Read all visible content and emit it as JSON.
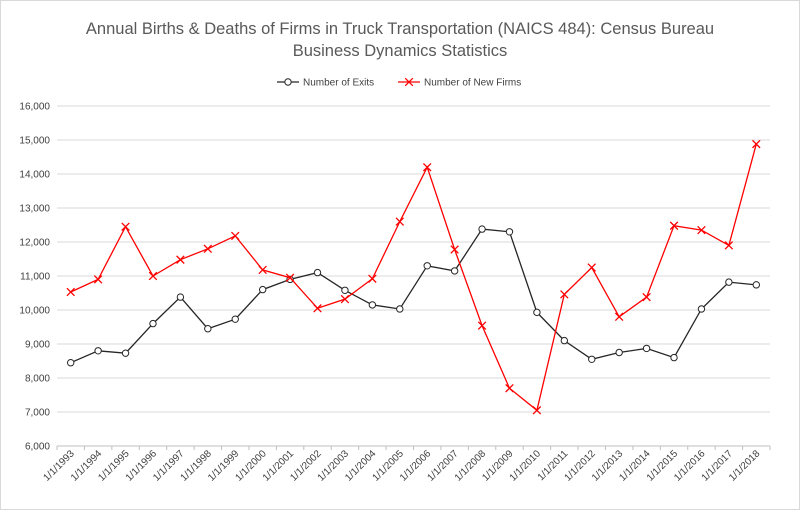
{
  "chart_data": {
    "type": "line",
    "title": "Annual Births & Deaths of Firms in Truck Transportation (NAICS 484): Census Bureau",
    "subtitle": "Business Dynamics Statistics",
    "xlabel": "",
    "ylabel": "",
    "ylim": [
      6000,
      16000
    ],
    "ytick_labels": [
      "6,000",
      "7,000",
      "8,000",
      "9,000",
      "10,000",
      "11,000",
      "12,000",
      "13,000",
      "14,000",
      "15,000",
      "16,000"
    ],
    "ytick_values": [
      6000,
      7000,
      8000,
      9000,
      10000,
      11000,
      12000,
      13000,
      14000,
      15000,
      16000
    ],
    "grid": "horizontal",
    "legend": "top-center",
    "categories": [
      "1/1/1993",
      "1/1/1994",
      "1/1/1995",
      "1/1/1996",
      "1/1/1997",
      "1/1/1998",
      "1/1/1999",
      "1/1/2000",
      "1/1/2001",
      "1/1/2002",
      "1/1/2003",
      "1/1/2004",
      "1/1/2005",
      "1/1/2006",
      "1/1/2007",
      "1/1/2008",
      "1/1/2009",
      "1/1/2010",
      "1/1/2011",
      "1/1/2012",
      "1/1/2013",
      "1/1/2014",
      "1/1/2015",
      "1/1/2016",
      "1/1/2017",
      "1/1/2018"
    ],
    "series": [
      {
        "name": "Number of Exits",
        "color": "#262626",
        "marker": "circle",
        "values": [
          8450,
          8800,
          8730,
          9600,
          10380,
          9450,
          9730,
          10600,
          10900,
          11100,
          10580,
          10150,
          10030,
          11300,
          11150,
          12380,
          12300,
          9930,
          9100,
          8550,
          8750,
          8870,
          8600,
          10030,
          10820,
          10740
        ]
      },
      {
        "name": "Number of New Firms",
        "color": "#ff0000",
        "marker": "x",
        "values": [
          10530,
          10900,
          12450,
          11000,
          11480,
          11800,
          12180,
          11180,
          10950,
          10050,
          10320,
          10920,
          12600,
          14200,
          11780,
          9540,
          7700,
          7050,
          10460,
          11250,
          9800,
          10380,
          12480,
          12350,
          11900,
          14880
        ]
      }
    ]
  }
}
